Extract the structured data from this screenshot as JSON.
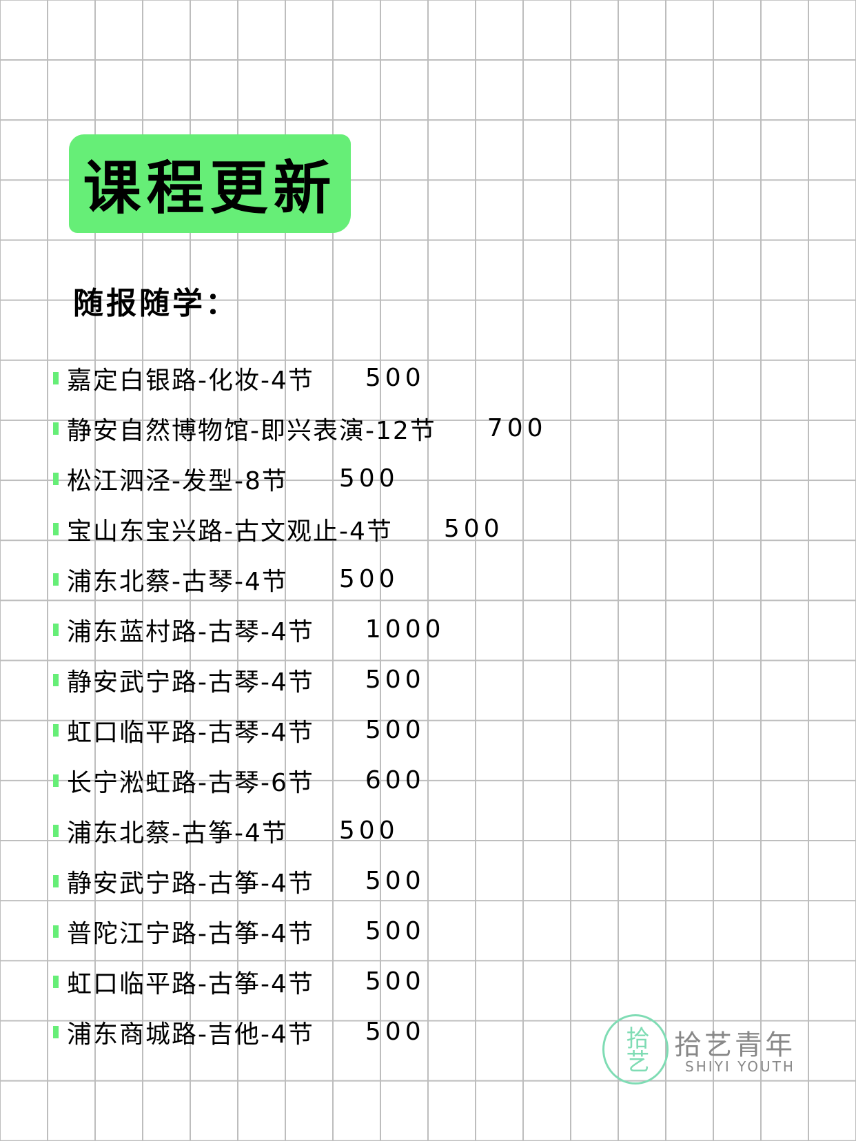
{
  "title": "课程更新",
  "subtitle": "随报随学：",
  "accent_color": "#66ee77",
  "items": [
    {
      "name": "嘉定白银路-化妆-4节",
      "price": "500"
    },
    {
      "name": "静安自然博物馆-即兴表演-12节",
      "price": "700"
    },
    {
      "name": "松江泗泾-发型-8节",
      "price": "500"
    },
    {
      "name": "宝山东宝兴路-古文观止-4节",
      "price": "500"
    },
    {
      "name": "浦东北蔡-古琴-4节",
      "price": "500"
    },
    {
      "name": "浦东蓝村路-古琴-4节",
      "price": "1000"
    },
    {
      "name": "静安武宁路-古琴-4节",
      "price": "500"
    },
    {
      "name": "虹口临平路-古琴-4节",
      "price": "500"
    },
    {
      "name": "长宁淞虹路-古琴-6节",
      "price": "600"
    },
    {
      "name": "浦东北蔡-古筝-4节",
      "price": "500"
    },
    {
      "name": "静安武宁路-古筝-4节",
      "price": "500"
    },
    {
      "name": "普陀江宁路-古筝-4节",
      "price": "500"
    },
    {
      "name": "虹口临平路-古筝-4节",
      "price": "500"
    },
    {
      "name": "浦东商城路-吉他-4节",
      "price": "500"
    }
  ],
  "logo": {
    "mark": "拾艺",
    "name_cn": "拾艺青年",
    "name_en": "SHIYI YOUTH"
  }
}
